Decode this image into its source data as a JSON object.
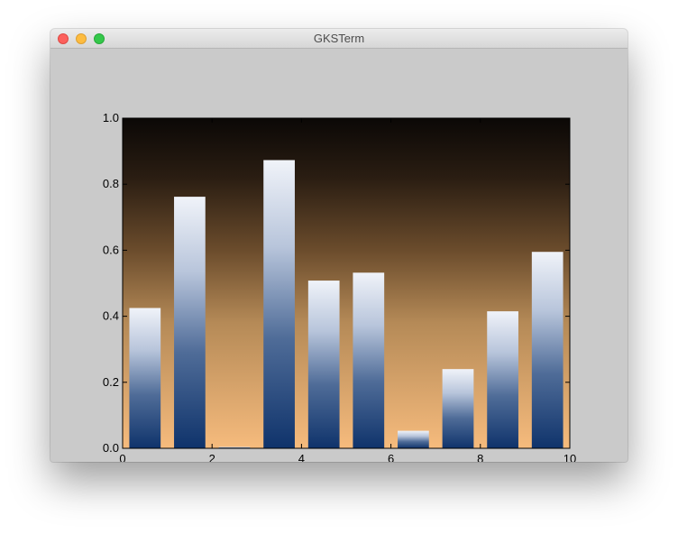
{
  "window": {
    "title": "GKSTerm"
  },
  "chart_data": {
    "type": "bar",
    "title": "",
    "xlabel": "",
    "ylabel": "",
    "x": [
      0.5,
      1.5,
      2.5,
      3.5,
      4.5,
      5.5,
      6.5,
      7.5,
      8.5,
      9.5
    ],
    "values": [
      0.425,
      0.762,
      0.004,
      0.873,
      0.508,
      0.532,
      0.053,
      0.24,
      0.415,
      0.595
    ],
    "xlim": [
      0,
      10
    ],
    "ylim": [
      0,
      1
    ],
    "xticks": [
      "0",
      "2",
      "4",
      "6",
      "8",
      "10"
    ],
    "xtick_values": [
      0,
      2,
      4,
      6,
      8,
      10
    ],
    "yticks": [
      "0.0",
      "0.2",
      "0.4",
      "0.6",
      "0.8",
      "1.0"
    ],
    "ytick_values": [
      0,
      0.2,
      0.4,
      0.6,
      0.8,
      1.0
    ],
    "bar_width": 0.7,
    "grid": false,
    "background_gradient": [
      "#0b0806",
      "#f6bb7d"
    ],
    "bar_gradient": [
      "#f0f3f9",
      "#0f336b"
    ]
  }
}
